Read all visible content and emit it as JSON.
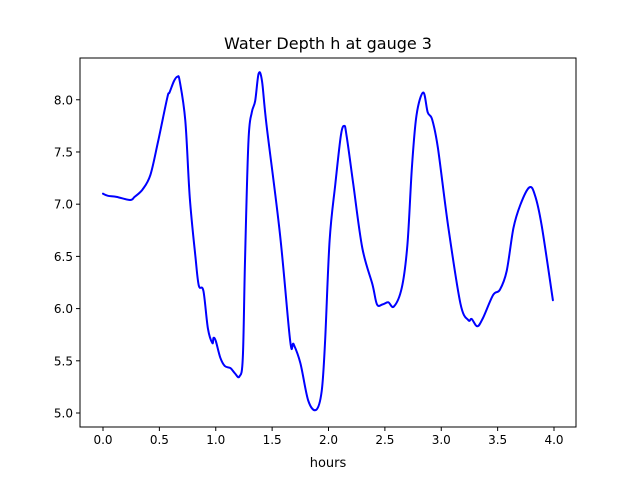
{
  "chart_data": {
    "type": "line",
    "title": "Water Depth h at gauge 3",
    "xlabel": "hours",
    "ylabel": "",
    "xlim": [
      -0.204,
      4.195
    ],
    "ylim": [
      4.866,
      8.4
    ],
    "xticks": [
      0.0,
      0.5,
      1.0,
      1.5,
      2.0,
      2.5,
      3.0,
      3.5,
      4.0
    ],
    "xtick_labels": [
      "0.0",
      "0.5",
      "1.0",
      "1.5",
      "2.0",
      "2.5",
      "3.0",
      "3.5",
      "4.0"
    ],
    "yticks": [
      5.0,
      5.5,
      6.0,
      6.5,
      7.0,
      7.5,
      8.0
    ],
    "ytick_labels": [
      "5.0",
      "5.5",
      "6.0",
      "6.5",
      "7.0",
      "7.5",
      "8.0"
    ],
    "grid": false,
    "series": [
      {
        "name": "h",
        "color": "#0000ff",
        "x": [
          0.0,
          0.044,
          0.12,
          0.24,
          0.28,
          0.35,
          0.42,
          0.49,
          0.57,
          0.59,
          0.63,
          0.66,
          0.68,
          0.73,
          0.77,
          0.82,
          0.85,
          0.89,
          0.93,
          0.97,
          0.98,
          1.0,
          1.04,
          1.08,
          1.13,
          1.17,
          1.21,
          1.24,
          1.26,
          1.29,
          1.32,
          1.35,
          1.38,
          1.41,
          1.45,
          1.57,
          1.66,
          1.69,
          1.75,
          1.82,
          1.89,
          1.94,
          1.97,
          2.01,
          2.06,
          2.11,
          2.14,
          2.16,
          2.22,
          2.3,
          2.39,
          2.43,
          2.48,
          2.53,
          2.58,
          2.65,
          2.7,
          2.74,
          2.78,
          2.84,
          2.88,
          2.92,
          2.97,
          3.06,
          3.17,
          3.24,
          3.27,
          3.32,
          3.37,
          3.46,
          3.52,
          3.58,
          3.64,
          3.7,
          3.78,
          3.83,
          3.89,
          3.99
        ],
        "y": [
          7.1,
          7.08,
          7.07,
          7.04,
          7.07,
          7.14,
          7.28,
          7.61,
          8.02,
          8.07,
          8.18,
          8.22,
          8.18,
          7.8,
          7.06,
          6.49,
          6.22,
          6.17,
          5.81,
          5.67,
          5.72,
          5.69,
          5.53,
          5.45,
          5.43,
          5.38,
          5.35,
          5.53,
          6.49,
          7.61,
          7.88,
          7.99,
          8.25,
          8.18,
          7.76,
          6.71,
          5.69,
          5.66,
          5.48,
          5.12,
          5.03,
          5.21,
          5.69,
          6.65,
          7.19,
          7.66,
          7.75,
          7.66,
          7.19,
          6.58,
          6.23,
          6.04,
          6.04,
          6.06,
          6.02,
          6.2,
          6.61,
          7.35,
          7.85,
          8.07,
          7.88,
          7.81,
          7.54,
          6.8,
          6.05,
          5.89,
          5.9,
          5.83,
          5.91,
          6.13,
          6.18,
          6.36,
          6.77,
          6.99,
          7.16,
          7.09,
          6.8,
          6.08
        ]
      }
    ]
  }
}
